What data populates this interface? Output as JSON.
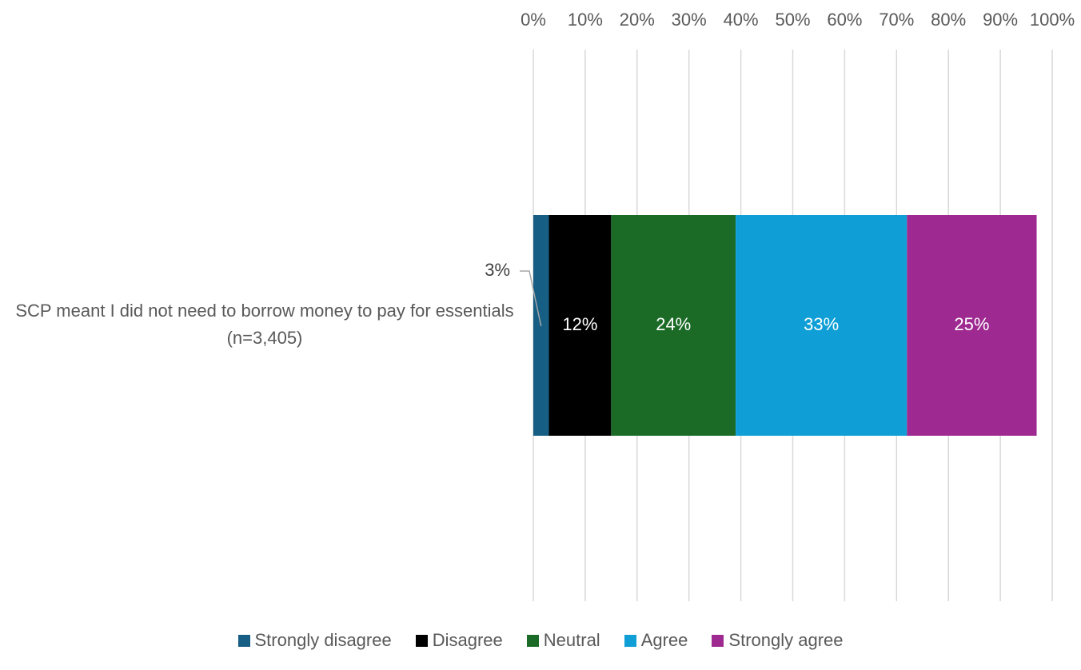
{
  "chart_data": {
    "type": "bar",
    "orientation": "horizontal",
    "stacked": true,
    "categories": [
      "SCP meant I did not need to borrow money to pay for essentials (n=3,405)"
    ],
    "series": [
      {
        "name": "Strongly disagree",
        "color": "#175e84",
        "values": [
          3
        ],
        "value_labels": [
          "3%"
        ]
      },
      {
        "name": "Disagree",
        "color": "#000000",
        "values": [
          12
        ],
        "value_labels": [
          "12%"
        ]
      },
      {
        "name": "Neutral",
        "color": "#1b6b27",
        "values": [
          24
        ],
        "value_labels": [
          "24%"
        ]
      },
      {
        "name": "Agree",
        "color": "#0f9fd6",
        "values": [
          33
        ],
        "value_labels": [
          "33%"
        ]
      },
      {
        "name": "Strongly agree",
        "color": "#9e2a91",
        "values": [
          25
        ],
        "value_labels": [
          "25%"
        ]
      }
    ],
    "xlim": [
      0,
      100
    ],
    "xticks": [
      {
        "value": 0,
        "label": "0%"
      },
      {
        "value": 10,
        "label": "10%"
      },
      {
        "value": 20,
        "label": "20%"
      },
      {
        "value": 30,
        "label": "30%"
      },
      {
        "value": 40,
        "label": "40%"
      },
      {
        "value": 50,
        "label": "50%"
      },
      {
        "value": 60,
        "label": "60%"
      },
      {
        "value": 70,
        "label": "70%"
      },
      {
        "value": 80,
        "label": "80%"
      },
      {
        "value": 90,
        "label": "90%"
      },
      {
        "value": 100,
        "label": "100%"
      }
    ],
    "grid": true,
    "legend": "bottom"
  }
}
